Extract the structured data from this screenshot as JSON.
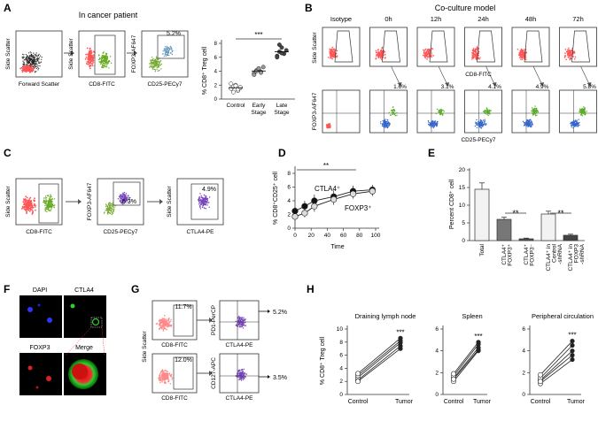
{
  "panels": {
    "A": {
      "letter": "A",
      "subtitle": "In cancer patient",
      "plot1": {
        "ylabel": "Side Scatter",
        "xlabel": "Forward Scatter"
      },
      "plot2": {
        "ylabel": "Side Scatter",
        "xlabel": "CD8-FITC"
      },
      "plot3": {
        "ylabel": "FOXP3-AF647",
        "xlabel": "CD25-PECy7",
        "pct": "5.2%"
      },
      "dotplot": {
        "ylabel": "% CD8⁺ Treg cell",
        "yticks": [
          "0",
          "2",
          "4",
          "6",
          "8"
        ],
        "groups": [
          {
            "label": "Control",
            "values": [
              1.5,
              1.8,
              2.0,
              1.2,
              1.6,
              2.2,
              1.0,
              1.9,
              1.4,
              1.7
            ]
          },
          {
            "label": "Early Stage",
            "values": [
              3.7,
              4.1,
              4.3,
              3.9,
              4.6,
              3.5,
              4.0,
              4.4,
              3.8
            ]
          },
          {
            "label": "Late Stage",
            "values": [
              6.2,
              6.8,
              7.4,
              6.5,
              7.0,
              6.0,
              7.8,
              6.6
            ]
          }
        ],
        "sig": "***"
      }
    },
    "B": {
      "letter": "B",
      "subtitle": "Co-culture model",
      "cols": [
        "Isotype",
        "0h",
        "12h",
        "24h",
        "48h",
        "72h"
      ],
      "top_ylabel": "Side Scatter",
      "top_xlabel": "CD8-FITC",
      "bot_ylabel": "FOXP3-AF647",
      "bot_xlabel": "CD25-PECy7",
      "pcts": [
        "",
        "1.6%",
        "3.1%",
        "4.1%",
        "4.9%",
        "5.8%"
      ]
    },
    "C": {
      "letter": "C",
      "plot1": {
        "ylabel": "Side Scatter",
        "xlabel": "CD8-FITC"
      },
      "plot2": {
        "ylabel": "FOXP3-AF647",
        "xlabel": "CD25-PECy7",
        "pct": "6.3%"
      },
      "plot3": {
        "ylabel": "Side Scatter",
        "xlabel": "CTLA4-PE",
        "pct": "4.9%"
      }
    },
    "D": {
      "letter": "D",
      "ylabel": "% CD8⁺CD25⁺ cell",
      "xlabel": "Time",
      "xticks": [
        "0",
        "20",
        "40",
        "60",
        "80",
        "100"
      ],
      "yticks": [
        "0",
        "2",
        "4",
        "6",
        "8"
      ],
      "sig": "**",
      "series_labels": [
        "CTLA4⁺",
        "FOXP3⁺"
      ]
    },
    "E": {
      "letter": "E",
      "ylabel": "Percent CD8⁺ cell",
      "yticks": [
        "0",
        "5",
        "10",
        "15",
        "20"
      ],
      "categories": [
        "Total",
        "CTLA4⁺ FOXP3⁺",
        "CTLA4⁺ FOXP3⁻",
        "CTLA4⁺ in Control -shRNA",
        "CTLA4⁺ in FOXP3 -shRNA"
      ],
      "sig": [
        "**",
        "**"
      ]
    },
    "F": {
      "letter": "F",
      "labels": [
        "DAPI",
        "CTLA4",
        "FOXP3",
        "Merge"
      ]
    },
    "G": {
      "letter": "G",
      "ylabel": "Side Scatter",
      "row1": {
        "pct_left": "11.7%",
        "xlabel_left": "CD8-FITC",
        "ylabel_right": "PD1-PerCP",
        "xlabel_right": "CTLA4-PE",
        "pct_right": "5.2%"
      },
      "row2": {
        "pct_left": "12.0%",
        "xlabel_left": "CD8-FITC",
        "ylabel_right": "CD127-APC",
        "xlabel_right": "CTLA4-PE",
        "pct_right": "3.5%"
      }
    },
    "H": {
      "letter": "H",
      "ylabel": "% CD8⁺ Treg cell",
      "sig": "***",
      "xcats": [
        "Control",
        "Tumor"
      ],
      "subplots": [
        {
          "title": "Draining lymph node",
          "yticks": [
            "0",
            "2",
            "4",
            "6",
            "8",
            "10"
          ]
        },
        {
          "title": "Spleen",
          "yticks": [
            "0",
            "2",
            "4",
            "6"
          ]
        },
        {
          "title": "Peripheral circulation",
          "yticks": [
            "0",
            "2",
            "4",
            "6"
          ]
        }
      ]
    }
  },
  "chart_data": [
    {
      "type": "scatter",
      "title": "",
      "ylabel": "% CD8⁺ Treg cell",
      "categories": [
        "Control",
        "Early Stage",
        "Late Stage"
      ],
      "ylim": [
        0,
        8
      ],
      "series": [
        {
          "name": "Control",
          "values": [
            1.5,
            1.8,
            2.0,
            1.2,
            1.6,
            2.2,
            1.0,
            1.9,
            1.4,
            1.7
          ]
        },
        {
          "name": "Early Stage",
          "values": [
            3.7,
            4.1,
            4.3,
            3.9,
            4.6,
            3.5,
            4.0,
            4.4,
            3.8
          ]
        },
        {
          "name": "Late Stage",
          "values": [
            6.2,
            6.8,
            7.4,
            6.5,
            7.0,
            6.0,
            7.8,
            6.6
          ]
        }
      ]
    },
    {
      "type": "line",
      "xlabel": "Time",
      "ylabel": "% CD8⁺CD25⁺ cell",
      "xlim": [
        0,
        100
      ],
      "ylim": [
        0,
        8
      ],
      "x": [
        0,
        12,
        24,
        48,
        72,
        96
      ],
      "series": [
        {
          "name": "CTLA4⁺",
          "values": [
            2.5,
            3.2,
            4.0,
            4.6,
            5.4,
            5.6
          ],
          "err": [
            0.6,
            0.8,
            0.9,
            0.9,
            0.8,
            0.7
          ]
        },
        {
          "name": "FOXP3⁺",
          "values": [
            1.7,
            2.2,
            3.2,
            4.2,
            5.0,
            5.4
          ],
          "err": [
            0.5,
            0.6,
            0.8,
            0.8,
            0.7,
            0.7
          ]
        }
      ]
    },
    {
      "type": "bar",
      "ylabel": "Percent CD8⁺ cell",
      "categories": [
        "Total",
        "CTLA4⁺ FOXP3⁺",
        "CTLA4⁺ FOXP3⁻",
        "CTLA4⁺ in Control -shRNA",
        "CTLA4⁺ in FOXP3 -shRNA"
      ],
      "values": [
        14.5,
        6.0,
        0.5,
        7.5,
        1.5
      ],
      "err": [
        1.8,
        0.6,
        0.2,
        0.8,
        0.3
      ],
      "ylim": [
        0,
        20
      ]
    },
    {
      "type": "line",
      "title": "Draining lymph node",
      "categories": [
        "Control",
        "Tumor"
      ],
      "ylim": [
        0,
        10
      ],
      "series": [
        {
          "name": "p1",
          "values": [
            2.2,
            7.4
          ]
        },
        {
          "name": "p2",
          "values": [
            2.6,
            7.9
          ]
        },
        {
          "name": "p3",
          "values": [
            2.9,
            8.2
          ]
        },
        {
          "name": "p4",
          "values": [
            3.2,
            8.6
          ]
        },
        {
          "name": "p5",
          "values": [
            2.0,
            7.0
          ]
        }
      ]
    },
    {
      "type": "line",
      "title": "Spleen",
      "categories": [
        "Control",
        "Tumor"
      ],
      "ylim": [
        0,
        6
      ],
      "series": [
        {
          "name": "p1",
          "values": [
            1.2,
            4.0
          ]
        },
        {
          "name": "p2",
          "values": [
            1.5,
            4.3
          ]
        },
        {
          "name": "p3",
          "values": [
            1.7,
            4.6
          ]
        },
        {
          "name": "p4",
          "values": [
            1.9,
            4.8
          ]
        },
        {
          "name": "p5",
          "values": [
            1.4,
            4.1
          ]
        }
      ]
    },
    {
      "type": "line",
      "title": "Peripheral circulation",
      "categories": [
        "Control",
        "Tumor"
      ],
      "ylim": [
        0,
        6
      ],
      "series": [
        {
          "name": "p1",
          "values": [
            1.0,
            3.2
          ]
        },
        {
          "name": "p2",
          "values": [
            1.3,
            4.0
          ]
        },
        {
          "name": "p3",
          "values": [
            1.5,
            4.5
          ]
        },
        {
          "name": "p4",
          "values": [
            1.8,
            4.9
          ]
        },
        {
          "name": "p5",
          "values": [
            1.2,
            3.6
          ]
        }
      ]
    }
  ]
}
